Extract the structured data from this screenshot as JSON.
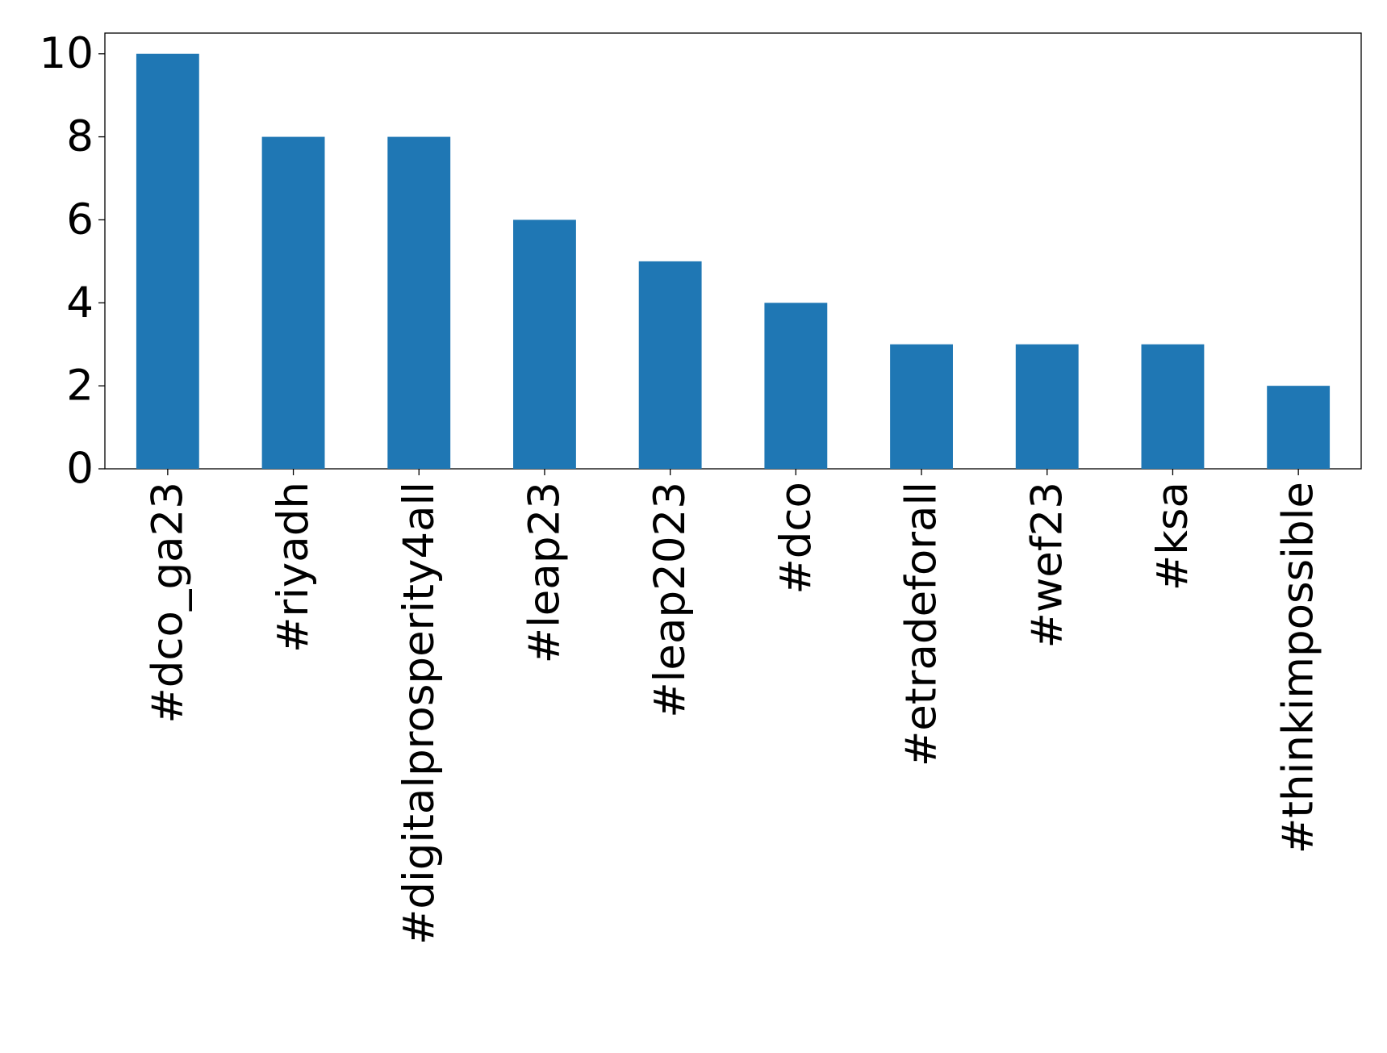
{
  "chart_data": {
    "type": "bar",
    "categories": [
      "#dco_ga23",
      "#riyadh",
      "#digitalprosperity4all",
      "#leap23",
      "#leap2023",
      "#dco",
      "#etradeforall",
      "#wef23",
      "#ksa",
      "#thinkimpossible"
    ],
    "values": [
      10,
      8,
      8,
      6,
      5,
      4,
      3,
      3,
      3,
      2
    ],
    "color": "#1f77b4",
    "ylim": [
      0,
      10.5
    ],
    "yticks": [
      0,
      2,
      4,
      6,
      8,
      10
    ],
    "grid": false
  }
}
